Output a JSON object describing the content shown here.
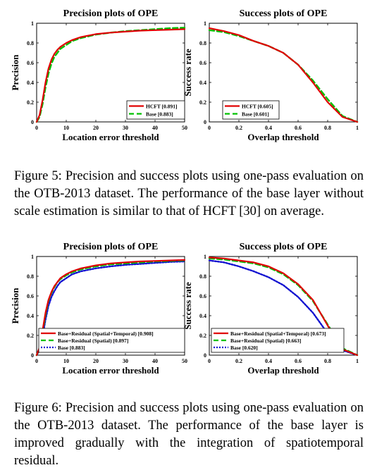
{
  "figures": [
    {
      "id": "fig5",
      "caption": "Figure 5: Precision and success plots using one-pass evaluation on the OTB-2013 dataset. The performance of the base layer without scale estimation is similar to that of HCFT [30] on average."
    },
    {
      "id": "fig6",
      "caption": "Figure 6: Precision and success plots using one-pass evaluation on the OTB-2013 dataset. The performance of the base layer is improved gradually with the integration of spatiotemporal residual."
    }
  ],
  "chart_data": [
    {
      "figure": "fig5",
      "type": "line",
      "title": "Precision plots of OPE",
      "xlabel": "Location error threshold",
      "ylabel": "Precision",
      "xlim": [
        0,
        50
      ],
      "ylim": [
        0,
        1
      ],
      "xticks": [
        "0",
        "10",
        "20",
        "30",
        "40",
        "50"
      ],
      "yticks": [
        "0",
        "0.2",
        "0.4",
        "0.6",
        "0.8",
        "1"
      ],
      "legend_position": "lower-right",
      "series": [
        {
          "name": "HCFT [0.891]",
          "color": "#e00000",
          "dash": "solid",
          "x": [
            0,
            1,
            2,
            3,
            4,
            5,
            6,
            7,
            8,
            10,
            12,
            15,
            20,
            25,
            30,
            35,
            40,
            45,
            50
          ],
          "y": [
            0,
            0.07,
            0.22,
            0.4,
            0.54,
            0.63,
            0.69,
            0.73,
            0.76,
            0.8,
            0.83,
            0.86,
            0.89,
            0.905,
            0.915,
            0.925,
            0.93,
            0.935,
            0.94
          ]
        },
        {
          "name": "Base [0.883]",
          "color": "#00c000",
          "dash": "dash",
          "x": [
            0,
            1,
            2,
            3,
            4,
            5,
            6,
            7,
            8,
            10,
            12,
            15,
            20,
            25,
            30,
            35,
            40,
            45,
            50
          ],
          "y": [
            0,
            0.05,
            0.18,
            0.35,
            0.49,
            0.59,
            0.66,
            0.7,
            0.74,
            0.78,
            0.82,
            0.85,
            0.885,
            0.905,
            0.92,
            0.93,
            0.94,
            0.95,
            0.955
          ]
        }
      ]
    },
    {
      "figure": "fig5",
      "type": "line",
      "title": "Success plots of OPE",
      "xlabel": "Overlap threshold",
      "ylabel": "Success rate",
      "xlim": [
        0,
        1
      ],
      "ylim": [
        0,
        1
      ],
      "xticks": [
        "0",
        "0.2",
        "0.4",
        "0.6",
        "0.8",
        "1"
      ],
      "yticks": [
        "0",
        "0.2",
        "0.4",
        "0.6",
        "0.8",
        "1"
      ],
      "legend_position": "lower-left",
      "series": [
        {
          "name": "HCFT [0.605]",
          "color": "#e00000",
          "dash": "solid",
          "x": [
            0,
            0.1,
            0.2,
            0.3,
            0.4,
            0.5,
            0.6,
            0.7,
            0.8,
            0.9,
            1.0
          ],
          "y": [
            0.95,
            0.92,
            0.88,
            0.82,
            0.77,
            0.7,
            0.58,
            0.4,
            0.2,
            0.05,
            0
          ]
        },
        {
          "name": "Base [0.601]",
          "color": "#00c000",
          "dash": "dash",
          "x": [
            0,
            0.1,
            0.2,
            0.3,
            0.4,
            0.5,
            0.6,
            0.7,
            0.8,
            0.9,
            1.0
          ],
          "y": [
            0.93,
            0.91,
            0.87,
            0.82,
            0.77,
            0.7,
            0.58,
            0.42,
            0.23,
            0.06,
            0
          ]
        }
      ]
    },
    {
      "figure": "fig6",
      "type": "line",
      "title": "Precision plots of OPE",
      "xlabel": "Location error threshold",
      "ylabel": "Precision",
      "xlim": [
        0,
        50
      ],
      "ylim": [
        0,
        1
      ],
      "xticks": [
        "0",
        "10",
        "20",
        "30",
        "40",
        "50"
      ],
      "yticks": [
        "0",
        "0.2",
        "0.4",
        "0.6",
        "0.8",
        "1"
      ],
      "legend_position": "lower-right",
      "series": [
        {
          "name": "Base+Residual (Spatial+Temporal) [0.908]",
          "color": "#e00000",
          "dash": "solid",
          "x": [
            0,
            1,
            2,
            3,
            4,
            5,
            6,
            7,
            8,
            10,
            12,
            15,
            20,
            25,
            30,
            35,
            40,
            45,
            50
          ],
          "y": [
            0,
            0.08,
            0.25,
            0.43,
            0.56,
            0.64,
            0.7,
            0.74,
            0.78,
            0.82,
            0.85,
            0.88,
            0.91,
            0.93,
            0.94,
            0.95,
            0.955,
            0.96,
            0.965
          ]
        },
        {
          "name": "Base+Residual (Spatial) [0.897]",
          "color": "#00c000",
          "dash": "dash",
          "x": [
            0,
            1,
            2,
            3,
            4,
            5,
            6,
            7,
            8,
            10,
            12,
            15,
            20,
            25,
            30,
            35,
            40,
            45,
            50
          ],
          "y": [
            0,
            0.07,
            0.23,
            0.41,
            0.55,
            0.63,
            0.69,
            0.74,
            0.77,
            0.81,
            0.84,
            0.87,
            0.9,
            0.92,
            0.93,
            0.94,
            0.95,
            0.955,
            0.96
          ]
        },
        {
          "name": "Base [0.883]",
          "color": "#1010d0",
          "dash": "dot",
          "x": [
            0,
            1,
            2,
            3,
            4,
            5,
            6,
            7,
            8,
            10,
            12,
            15,
            20,
            25,
            30,
            35,
            40,
            45,
            50
          ],
          "y": [
            0,
            0.05,
            0.19,
            0.36,
            0.5,
            0.59,
            0.65,
            0.7,
            0.74,
            0.78,
            0.82,
            0.85,
            0.88,
            0.9,
            0.915,
            0.925,
            0.935,
            0.945,
            0.95
          ]
        }
      ]
    },
    {
      "figure": "fig6",
      "type": "line",
      "title": "Success plots of OPE",
      "xlabel": "Overlap threshold",
      "ylabel": "Success rate",
      "xlim": [
        0,
        1
      ],
      "ylim": [
        0,
        1
      ],
      "xticks": [
        "0",
        "0.2",
        "0.4",
        "0.6",
        "0.8",
        "1"
      ],
      "yticks": [
        "0",
        "0.2",
        "0.4",
        "0.6",
        "0.8",
        "1"
      ],
      "legend_position": "lower-left",
      "series": [
        {
          "name": "Base+Residual (Spatial+Temporal) [0.673]",
          "color": "#e00000",
          "dash": "solid",
          "x": [
            0,
            0.1,
            0.2,
            0.3,
            0.4,
            0.5,
            0.6,
            0.7,
            0.8,
            0.9,
            1.0
          ],
          "y": [
            0.99,
            0.98,
            0.96,
            0.94,
            0.9,
            0.83,
            0.72,
            0.56,
            0.3,
            0.06,
            0
          ]
        },
        {
          "name": "Base+Residual (Spatial) [0.663]",
          "color": "#00c000",
          "dash": "dash",
          "x": [
            0,
            0.1,
            0.2,
            0.3,
            0.4,
            0.5,
            0.6,
            0.7,
            0.8,
            0.9,
            1.0
          ],
          "y": [
            0.98,
            0.97,
            0.95,
            0.93,
            0.89,
            0.82,
            0.71,
            0.55,
            0.31,
            0.07,
            0
          ]
        },
        {
          "name": "Base [0.620]",
          "color": "#1010d0",
          "dash": "dot",
          "x": [
            0,
            0.1,
            0.2,
            0.3,
            0.4,
            0.5,
            0.6,
            0.7,
            0.8,
            0.9,
            1.0
          ],
          "y": [
            0.96,
            0.94,
            0.9,
            0.85,
            0.79,
            0.71,
            0.59,
            0.43,
            0.22,
            0.05,
            0
          ]
        }
      ]
    }
  ]
}
